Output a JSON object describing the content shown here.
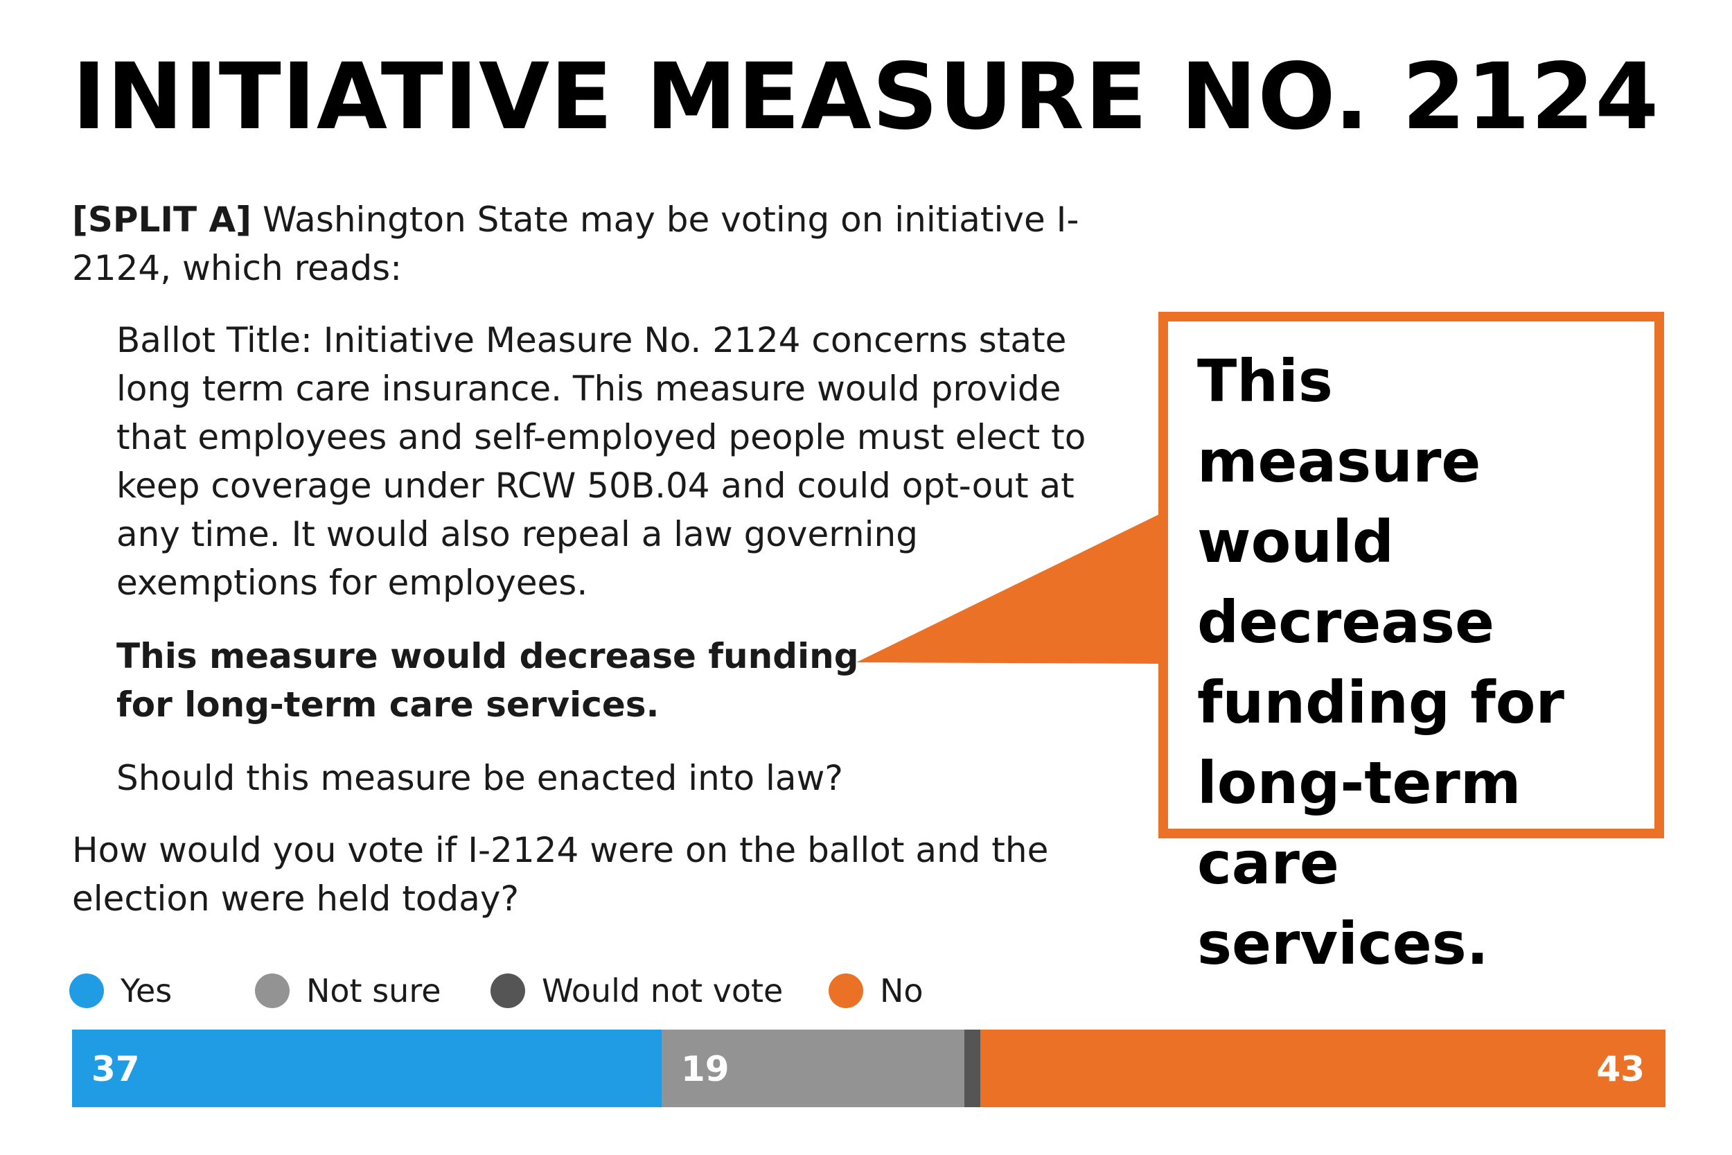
{
  "title": "INITIATIVE MEASURE NO. 2124",
  "intro": {
    "split_label": "[SPLIT A]",
    "text": " Washington State may be voting on initiative I-2124, which reads:"
  },
  "quote": {
    "ballot_title": "Ballot Title: Initiative Measure No. 2124 concerns state long term care insurance. This measure would provide that employees and self-employed people must elect to keep coverage under RCW 50B.04 and could opt-out at any time. It would also repeal a law governing exemptions for employees.",
    "emphasis": "This measure would decrease funding for long-term care services.",
    "prompt": "Should this measure be enacted into law?"
  },
  "question": "How would you vote if I-2124 were on the ballot and the election were held today?",
  "callout": {
    "text": "This measure would decrease funding for long-term care services.",
    "border_color": "#ea7125"
  },
  "chart_data": {
    "type": "bar",
    "orientation": "horizontal-stacked",
    "categories": [
      "I-2124"
    ],
    "series": [
      {
        "name": "Yes",
        "values": [
          37
        ],
        "color": "#1f9ce4",
        "label": "37"
      },
      {
        "name": "Not sure",
        "values": [
          19
        ],
        "color": "#939393",
        "label": "19"
      },
      {
        "name": "Would not vote",
        "values": [
          1
        ],
        "color": "#555555",
        "label": ""
      },
      {
        "name": "No",
        "values": [
          43
        ],
        "color": "#ea7125",
        "label": "43"
      }
    ],
    "xlim": [
      0,
      100
    ],
    "legend_position": "top-left"
  }
}
